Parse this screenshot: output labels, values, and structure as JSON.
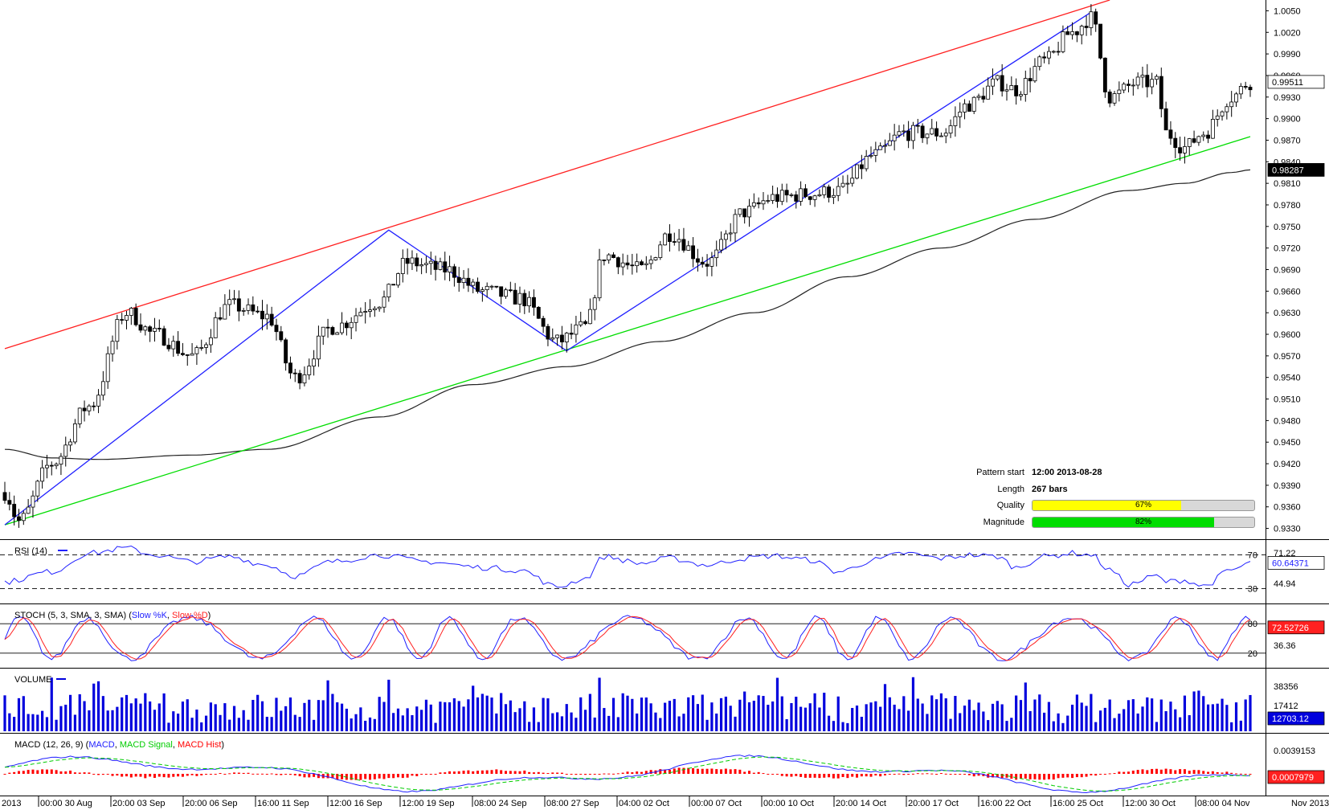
{
  "pattern_info": {
    "start_label": "Pattern start",
    "start_value": "12:00 2013-08-28",
    "length_label": "Length",
    "length_value": "267 bars",
    "quality_label": "Quality",
    "quality_value": "67%",
    "quality_pct": 67,
    "magnitude_label": "Magnitude",
    "magnitude_value": "82%",
    "magnitude_pct": 82
  },
  "colors": {
    "channel_upper": "#ff2020",
    "channel_lower": "#00dd00",
    "zigzag": "#2020ff",
    "moving_average": "#222222",
    "quality_fill": "#ffff00",
    "magnitude_fill": "#00dd00",
    "rsi_line": "#2020ff",
    "stoch_k": "#2020ff",
    "stoch_d": "#ff2020",
    "volume": "#0000dd",
    "macd_line": "#2020ff",
    "macd_signal": "#00cc00",
    "macd_hist": "#ff0000",
    "badge_volume": "#0000dd",
    "badge_stoch": "#ff2020",
    "badge_macd": "#ff2020",
    "badge_rsi": "#2020ff",
    "badge_ma": "#000000"
  },
  "chart_data": [
    {
      "type": "candlestick",
      "panel": "price",
      "ylim": [
        0.9315,
        1.0065
      ],
      "y_ticks": [
        "1.0050",
        "1.0020",
        "0.9990",
        "0.9960",
        "0.9930",
        "0.9900",
        "0.9870",
        "0.9840",
        "0.9810",
        "0.9780",
        "0.9750",
        "0.9720",
        "0.9690",
        "0.9660",
        "0.9630",
        "0.9600",
        "0.9570",
        "0.9540",
        "0.9510",
        "0.9480",
        "0.9450",
        "0.9420",
        "0.9390",
        "0.9360",
        "0.9330"
      ],
      "current_price_badge": "0.99511",
      "ma_badge": "0.98287",
      "bars": 267,
      "series_anchors": [
        [
          0,
          0.938
        ],
        [
          3,
          0.934
        ],
        [
          10,
          0.942
        ],
        [
          18,
          0.95
        ],
        [
          26,
          0.963
        ],
        [
          32,
          0.96
        ],
        [
          40,
          0.957
        ],
        [
          48,
          0.964
        ],
        [
          56,
          0.9625
        ],
        [
          62,
          0.954
        ],
        [
          70,
          0.961
        ],
        [
          80,
          0.9645
        ],
        [
          86,
          0.97
        ],
        [
          94,
          0.969
        ],
        [
          102,
          0.966
        ],
        [
          110,
          0.965
        ],
        [
          118,
          0.959
        ],
        [
          124,
          0.961
        ],
        [
          128,
          0.971
        ],
        [
          136,
          0.969
        ],
        [
          142,
          0.974
        ],
        [
          150,
          0.97
        ],
        [
          158,
          0.977
        ],
        [
          164,
          0.979
        ],
        [
          172,
          0.9795
        ],
        [
          178,
          0.98
        ],
        [
          186,
          0.985
        ],
        [
          192,
          0.988
        ],
        [
          200,
          0.988
        ],
        [
          206,
          0.992
        ],
        [
          212,
          0.995
        ],
        [
          216,
          0.994
        ],
        [
          222,
          0.998
        ],
        [
          228,
          1.002
        ],
        [
          232,
          1.004
        ],
        [
          236,
          0.993
        ],
        [
          242,
          0.995
        ],
        [
          246,
          0.995
        ],
        [
          248,
          0.988
        ],
        [
          252,
          0.986
        ],
        [
          256,
          0.988
        ],
        [
          262,
          0.993
        ],
        [
          266,
          0.9951
        ]
      ],
      "moving_average_anchors": [
        [
          0,
          0.944
        ],
        [
          10,
          0.9428
        ],
        [
          20,
          0.9426
        ],
        [
          40,
          0.9432
        ],
        [
          56,
          0.944
        ],
        [
          80,
          0.9485
        ],
        [
          100,
          0.953
        ],
        [
          120,
          0.9555
        ],
        [
          140,
          0.959
        ],
        [
          160,
          0.963
        ],
        [
          180,
          0.968
        ],
        [
          200,
          0.972
        ],
        [
          220,
          0.976
        ],
        [
          240,
          0.98
        ],
        [
          252,
          0.981
        ],
        [
          262,
          0.9825
        ],
        [
          266,
          0.98287
        ]
      ],
      "channel_upper": [
        [
          0,
          0.958
        ],
        [
          236,
          1.0065
        ]
      ],
      "channel_lower": [
        [
          0,
          0.9335
        ],
        [
          266,
          0.9875
        ]
      ],
      "zigzag": [
        [
          0,
          0.9335
        ],
        [
          82,
          0.9745
        ],
        [
          120,
          0.9577
        ],
        [
          232,
          1.0048
        ]
      ]
    },
    {
      "type": "line",
      "panel": "rsi",
      "title": "RSI (14)",
      "ylim": [
        20,
        80
      ],
      "levels": [
        "70",
        "30"
      ],
      "extra_ticks": [
        "71.22",
        "44.94"
      ],
      "badge": "60.64371",
      "anchors": [
        [
          0,
          38
        ],
        [
          10,
          50
        ],
        [
          18,
          72
        ],
        [
          26,
          78
        ],
        [
          32,
          70
        ],
        [
          40,
          62
        ],
        [
          48,
          68
        ],
        [
          56,
          58
        ],
        [
          62,
          45
        ],
        [
          70,
          62
        ],
        [
          80,
          70
        ],
        [
          90,
          62
        ],
        [
          102,
          55
        ],
        [
          110,
          52
        ],
        [
          118,
          32
        ],
        [
          124,
          42
        ],
        [
          128,
          68
        ],
        [
          136,
          60
        ],
        [
          142,
          66
        ],
        [
          150,
          58
        ],
        [
          158,
          66
        ],
        [
          164,
          69
        ],
        [
          172,
          64
        ],
        [
          178,
          50
        ],
        [
          186,
          64
        ],
        [
          192,
          72
        ],
        [
          200,
          66
        ],
        [
          206,
          70
        ],
        [
          212,
          68
        ],
        [
          216,
          55
        ],
        [
          222,
          68
        ],
        [
          228,
          72
        ],
        [
          232,
          70
        ],
        [
          236,
          52
        ],
        [
          240,
          35
        ],
        [
          246,
          45
        ],
        [
          248,
          38
        ],
        [
          252,
          40
        ],
        [
          256,
          33
        ],
        [
          262,
          52
        ],
        [
          266,
          60
        ]
      ]
    },
    {
      "type": "line",
      "panel": "stoch",
      "title": "STOCH (5, 3, SMA, 3, SMA) (Slow %K, Slow %D)",
      "legend_parts": [
        "STOCH (5, 3, SMA, 3, SMA) (",
        "Slow %K",
        ", ",
        "Slow %D",
        ")"
      ],
      "ylim": [
        0,
        100
      ],
      "levels": [
        "80",
        "20"
      ],
      "extra_ticks": [
        "36.36"
      ],
      "badge": "72.52726"
    },
    {
      "type": "bar",
      "panel": "volume",
      "title": "VOLUME",
      "y_ticks": [
        "38356",
        "17412"
      ],
      "badge": "12703.12"
    },
    {
      "type": "line",
      "panel": "macd",
      "title": "MACD (12, 26, 9) (MACD, MACD Signal, MACD Hist)",
      "legend_parts": [
        "MACD (12, 26, 9) (",
        "MACD",
        ", ",
        "MACD Signal",
        ", ",
        "MACD Hist",
        ")"
      ],
      "y_ticks": [
        "0.0039153"
      ],
      "badge": "0.0007979"
    }
  ],
  "x_axis_labels": [
    "2013",
    "00:00 30 Aug",
    "20:00 03 Sep",
    "20:00 06 Sep",
    "16:00 11 Sep",
    "12:00 16 Sep",
    "12:00 19 Sep",
    "08:00 24 Sep",
    "08:00 27 Sep",
    "04:00 02 Oct",
    "00:00 07 Oct",
    "00:00 10 Oct",
    "20:00 14 Oct",
    "20:00 17 Oct",
    "16:00 22 Oct",
    "16:00 25 Oct",
    "12:00 30 Oct",
    "08:00 04 Nov",
    "Nov 2013"
  ]
}
